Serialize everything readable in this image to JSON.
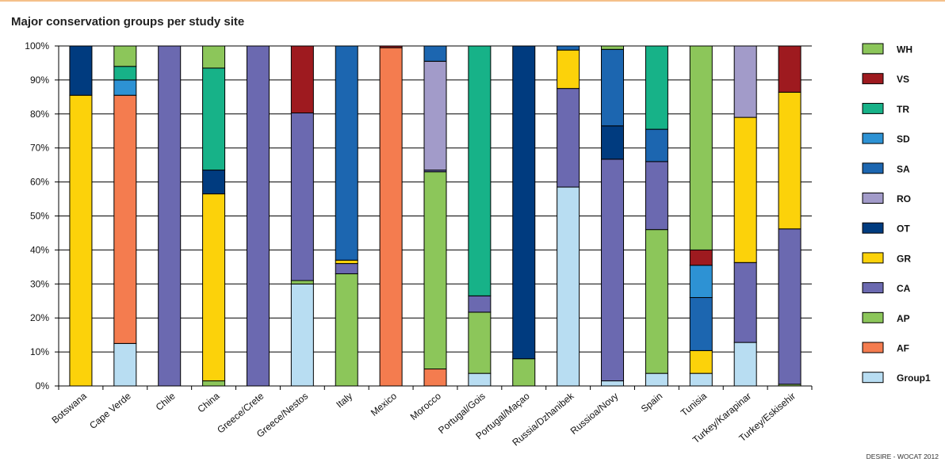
{
  "title": "Major conservation groups per study site",
  "source": "DESIRE - WOCAT 2012",
  "chart_data": {
    "type": "bar",
    "stacked": true,
    "title": "Major conservation groups per study site",
    "ylim": [
      0,
      100
    ],
    "yticks": [
      "0%",
      "10%",
      "20%",
      "30%",
      "40%",
      "50%",
      "60%",
      "70%",
      "80%",
      "90%",
      "100%"
    ],
    "categories": [
      "Botswana",
      "Cape Verde",
      "Chile",
      "China",
      "Greece/Crete",
      "Greece/Nestos",
      "Italy",
      "Mexico",
      "Morocco",
      "Portugal/Gois",
      "Portugal/Maçao",
      "Russia/Dzhanibek",
      "Russioa/Novy",
      "Spain",
      "Tunisia",
      "Turkey/Karapinar",
      "Turkey/Eskisehir"
    ],
    "legend_position": "right",
    "colors": {
      "Group1": "#b8ddf2",
      "AF": "#f47c4f",
      "AP": "#8cc65a",
      "CA": "#6b69b0",
      "GR": "#fcd20a",
      "OT": "#003b7f",
      "RO": "#a29bc9",
      "SA": "#1c66b0",
      "SD": "#2d92d4",
      "TR": "#17b288",
      "VS": "#9e1a1f",
      "WH": "#8cc65a"
    },
    "series": [
      {
        "name": "Group1",
        "values": [
          0,
          12.5,
          0,
          0,
          0,
          30,
          0,
          0,
          0,
          3.7,
          0,
          58.5,
          1.5,
          3.7,
          3.7,
          12.8,
          0
        ]
      },
      {
        "name": "AF",
        "values": [
          0,
          73,
          0,
          0,
          0,
          0,
          0,
          99.5,
          5,
          0,
          0,
          0,
          0,
          0,
          0,
          0,
          0
        ]
      },
      {
        "name": "AP",
        "values": [
          0,
          0,
          0,
          1.5,
          0,
          1,
          33,
          0,
          58,
          18,
          8,
          0,
          0,
          42.3,
          0,
          0,
          0.5
        ]
      },
      {
        "name": "CA",
        "values": [
          0,
          0,
          100,
          0,
          100,
          49.3,
          3,
          0,
          0.5,
          4.8,
          0,
          29,
          65.2,
          20,
          0,
          23.5,
          45.7
        ]
      },
      {
        "name": "GR",
        "values": [
          85.5,
          0,
          0,
          55,
          0,
          0,
          1,
          0,
          0,
          0,
          0,
          11.3,
          0,
          0,
          6.7,
          42.7,
          40.2
        ]
      },
      {
        "name": "OT",
        "values": [
          14.5,
          0,
          0,
          7,
          0,
          0,
          0,
          0,
          0,
          0,
          92,
          0,
          9.8,
          0,
          0,
          0,
          0
        ]
      },
      {
        "name": "RO",
        "values": [
          0,
          0,
          0,
          0,
          0,
          0,
          0,
          0,
          32,
          0,
          0,
          0,
          0,
          0,
          0,
          21,
          0
        ]
      },
      {
        "name": "SA",
        "values": [
          0,
          0,
          0,
          0,
          0,
          0,
          63,
          0,
          4.5,
          0,
          0,
          1.2,
          22.5,
          9.5,
          15.6,
          0,
          0
        ]
      },
      {
        "name": "SD",
        "values": [
          0,
          4.5,
          0,
          0,
          0,
          0,
          0,
          0,
          0,
          0,
          0,
          0,
          0,
          0,
          9.5,
          0,
          0
        ]
      },
      {
        "name": "TR",
        "values": [
          0,
          4,
          0,
          30,
          0,
          0,
          0,
          0,
          0,
          73.5,
          0,
          0,
          0,
          24.5,
          0,
          0,
          0
        ]
      },
      {
        "name": "VS",
        "values": [
          0,
          0,
          0,
          0,
          0,
          19.7,
          0,
          0.5,
          0,
          0,
          0,
          0,
          0,
          0,
          4.5,
          0,
          13.6
        ]
      },
      {
        "name": "WH",
        "values": [
          0,
          6,
          0,
          6.5,
          0,
          0,
          0,
          0,
          0,
          0,
          0,
          0,
          1,
          0,
          60,
          0,
          0
        ]
      }
    ]
  }
}
